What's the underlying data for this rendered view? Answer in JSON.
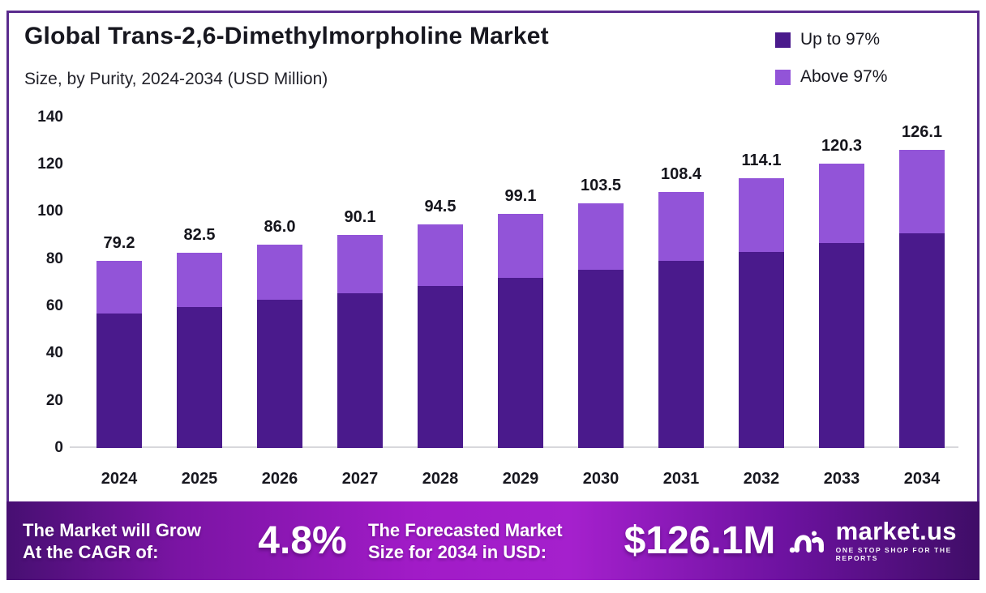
{
  "header": {
    "title": "Global Trans-2,6-Dimethylmorpholine Market",
    "subtitle": "Size, by Purity, 2024-2034 (USD Million)"
  },
  "legend": [
    {
      "label": "Up to 97%",
      "color": "#4a1a8c"
    },
    {
      "label": "Above 97%",
      "color": "#9254d8"
    }
  ],
  "chart_data": {
    "type": "bar",
    "stacked": true,
    "title": "Global Trans-2,6-Dimethylmorpholine Market",
    "subtitle": "Size, by Purity, 2024-2034 (USD Million)",
    "categories": [
      "2024",
      "2025",
      "2026",
      "2027",
      "2028",
      "2029",
      "2030",
      "2031",
      "2032",
      "2033",
      "2034"
    ],
    "series": [
      {
        "name": "Up to 97%",
        "color": "#4a1a8c",
        "values": [
          57.0,
          59.7,
          62.6,
          65.6,
          68.7,
          72.0,
          75.5,
          79.1,
          82.9,
          86.9,
          91.0
        ]
      },
      {
        "name": "Above 97%",
        "color": "#9254d8",
        "values": [
          22.2,
          22.8,
          23.4,
          24.5,
          25.8,
          27.1,
          28.0,
          29.3,
          31.2,
          33.4,
          35.1
        ]
      }
    ],
    "totals": [
      79.2,
      82.5,
      86.0,
      90.1,
      94.5,
      99.1,
      103.5,
      108.4,
      114.1,
      120.3,
      126.1
    ],
    "value_labels": [
      "79.2",
      "82.5",
      "86.0",
      "90.1",
      "94.5",
      "99.1",
      "103.5",
      "108.4",
      "114.1",
      "120.3",
      "126.1"
    ],
    "yticks": [
      0,
      20,
      40,
      60,
      80,
      100,
      120,
      140
    ],
    "ylim": [
      0,
      140
    ],
    "xlabel": "",
    "ylabel": "USD Million",
    "grid": false,
    "legend_position": "top-right"
  },
  "banner": {
    "cagr_label_line1": "The Market will Grow",
    "cagr_label_line2": "At the CAGR of:",
    "cagr_value": "4.8%",
    "forecast_label_line1": "The Forecasted Market",
    "forecast_label_line2": "Size for 2034 in USD:",
    "forecast_value": "$126.1M",
    "brand": "market.us",
    "brand_tagline": "ONE STOP SHOP FOR THE REPORTS"
  },
  "colors": {
    "frame_border": "#5a2b8e",
    "bar_dark": "#4a1a8c",
    "bar_light": "#9254d8",
    "text": "#17171f",
    "axis": "#d8d8dc",
    "banner_left": "#470f72",
    "banner_center": "#a11bc7",
    "banner_right": "#3f0d67"
  }
}
